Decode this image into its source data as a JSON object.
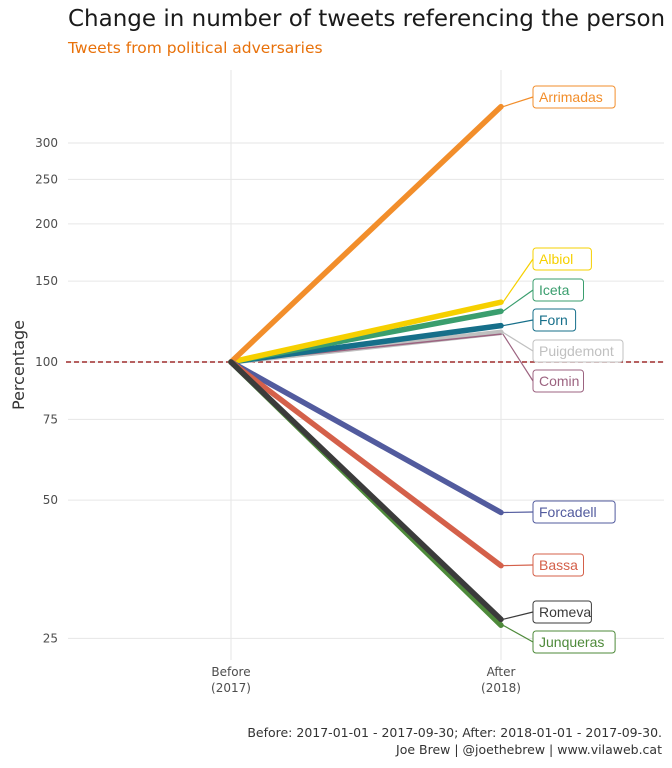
{
  "chart_data": {
    "type": "line",
    "title": "Change in number of tweets referencing the person",
    "subtitle": "Tweets from political adversaries",
    "ylabel": "Percentage",
    "xlabel": "",
    "x_categories": [
      {
        "line1": "Before",
        "line2": "(2017)"
      },
      {
        "line1": "After",
        "line2": "(2018)"
      }
    ],
    "y_scale": "log",
    "y_ticks": [
      25,
      50,
      75,
      100,
      150,
      200,
      250,
      300
    ],
    "ylim": [
      22,
      420
    ],
    "reference_line": {
      "y": 100,
      "color": "#8b0000",
      "style": "dashed"
    },
    "grid": true,
    "series": [
      {
        "name": "Arrimadas",
        "values": [
          100,
          360
        ],
        "color": "#f28e2b",
        "width": 5.5
      },
      {
        "name": "Albiol",
        "values": [
          100,
          135
        ],
        "color": "#f6d000",
        "width": 5.5
      },
      {
        "name": "Iceta",
        "values": [
          100,
          129
        ],
        "color": "#3a9e6e",
        "width": 5.5
      },
      {
        "name": "Forn",
        "values": [
          100,
          120
        ],
        "color": "#166f8a",
        "width": 5.5
      },
      {
        "name": "Puigdemont",
        "values": [
          100,
          116
        ],
        "color": "#c0c0c0",
        "width": 5.5
      },
      {
        "name": "Comin",
        "values": [
          100,
          115
        ],
        "color": "#9c6380",
        "width": 1.5
      },
      {
        "name": "Forcadell",
        "values": [
          100,
          47
        ],
        "color": "#525b9e",
        "width": 5.5
      },
      {
        "name": "Bassa",
        "values": [
          100,
          36
        ],
        "color": "#d4604a",
        "width": 5.5
      },
      {
        "name": "Junqueras",
        "values": [
          100,
          26.7
        ],
        "color": "#4e8a3a",
        "width": 5.5
      },
      {
        "name": "Romeva",
        "values": [
          100,
          27.5
        ],
        "color": "#3b3b3b",
        "width": 5.5
      }
    ]
  },
  "caption": {
    "line1": "Before: 2017-01-01 - 2017-09-30; After: 2018-01-01 - 2017-09-30.",
    "line2": "Joe Brew | @joethebrew | www.vilaweb.cat"
  }
}
